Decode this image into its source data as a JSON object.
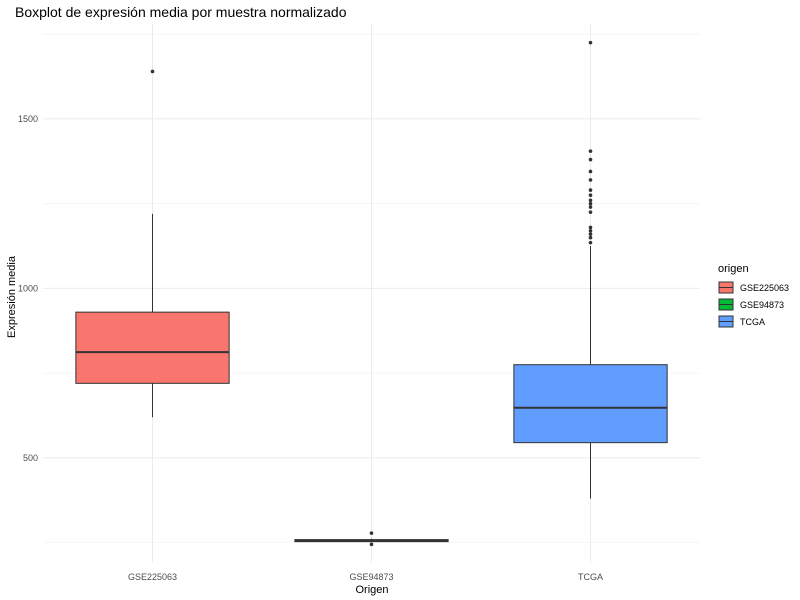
{
  "chart_data": {
    "type": "boxplot",
    "title": "Boxplot de expresión media por muestra normalizado",
    "xlabel": "Origen",
    "ylabel": "Expresión media",
    "ylim": [
      190,
      1780
    ],
    "yticks": [
      500,
      1000,
      1500
    ],
    "minor_yticks": [
      250,
      750,
      1250,
      1750
    ],
    "grid": true,
    "legend": {
      "title": "origen",
      "position": "right"
    },
    "categories": [
      "GSE225063",
      "GSE94873",
      "TCGA"
    ],
    "series": [
      {
        "name": "GSE225063",
        "color": "#F8766D",
        "min": 620,
        "q1": 720,
        "median": 812,
        "q3": 930,
        "max": 1220,
        "outliers": [
          1640
        ]
      },
      {
        "name": "GSE94873",
        "color": "#00BA38",
        "min": 252,
        "q1": 253,
        "median": 256,
        "q3": 259,
        "max": 262,
        "outliers": [
          278,
          245
        ]
      },
      {
        "name": "TCGA",
        "color": "#619CFF",
        "min": 380,
        "q1": 545,
        "median": 648,
        "q3": 775,
        "max": 1125,
        "outliers": [
          1135,
          1150,
          1160,
          1170,
          1180,
          1225,
          1240,
          1250,
          1260,
          1275,
          1290,
          1320,
          1345,
          1380,
          1405,
          1725
        ]
      }
    ]
  }
}
